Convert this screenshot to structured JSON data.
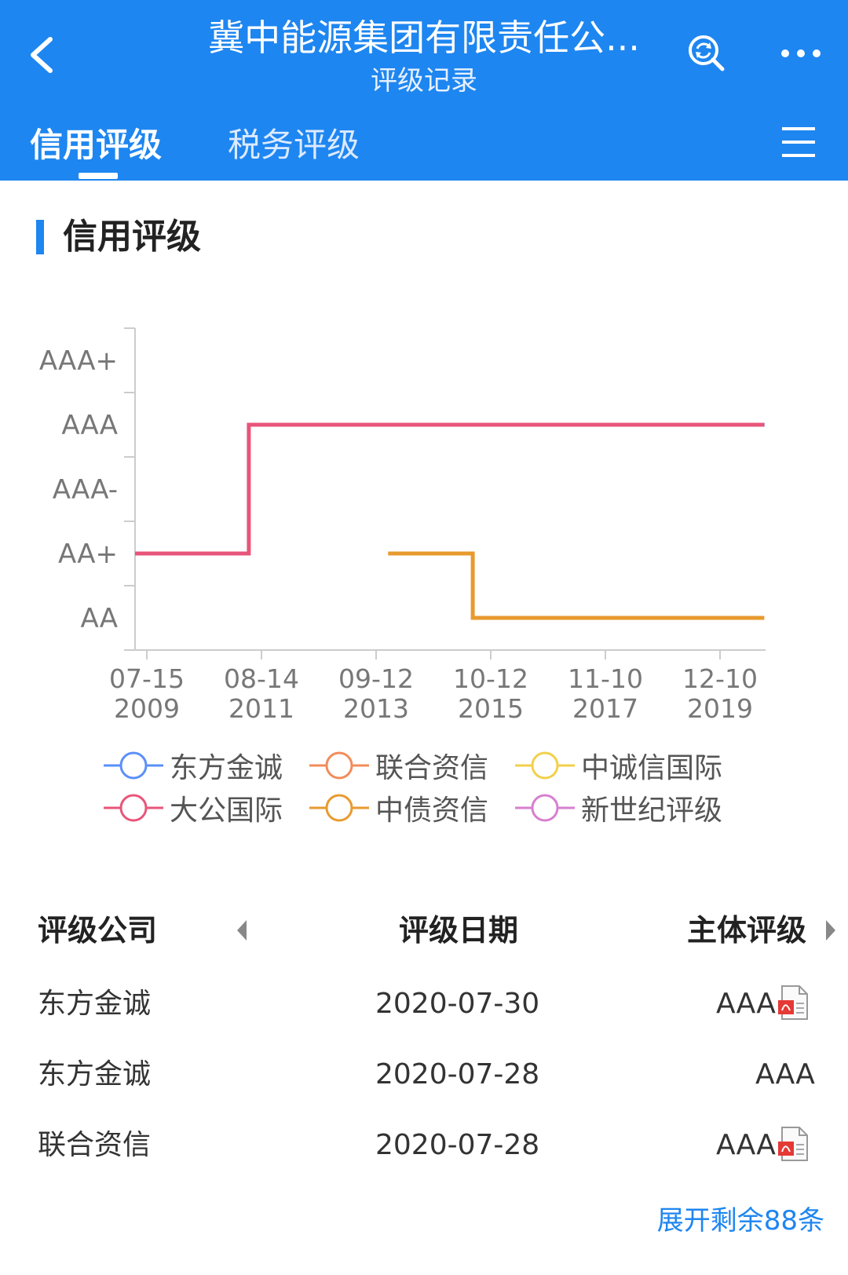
{
  "header": {
    "title": "冀中能源集团有限责任公...",
    "subtitle": "评级记录",
    "tabs": [
      {
        "label": "信用评级",
        "active": true
      },
      {
        "label": "税务评级",
        "active": false
      }
    ],
    "bg_color": "#1e86f0"
  },
  "section": {
    "title": "信用评级"
  },
  "chart_data": {
    "type": "line",
    "y_categories": [
      "AA",
      "AA+",
      "AAA-",
      "AAA",
      "AAA+"
    ],
    "x_tick_labels": [
      [
        "07-15",
        "2009"
      ],
      [
        "08-14",
        "2011"
      ],
      [
        "09-12",
        "2013"
      ],
      [
        "10-12",
        "2015"
      ],
      [
        "11-10",
        "2017"
      ],
      [
        "12-10",
        "2019"
      ]
    ],
    "xlim": [
      "2009-06-10",
      "2020-08-05"
    ],
    "series": [
      {
        "name": "东方金诚",
        "color": "#5b8ff9",
        "step": true,
        "points": [
          [
            "2019-09-01",
            "AAA"
          ],
          [
            "2020-07-30",
            "AAA"
          ]
        ]
      },
      {
        "name": "联合资信",
        "color": "#f28c5a",
        "step": true,
        "points": [
          [
            "2020-01-10",
            "AAA"
          ],
          [
            "2020-07-28",
            "AAA"
          ]
        ]
      },
      {
        "name": "中诚信国际",
        "color": "#f2d04a",
        "step": true,
        "points": [
          [
            "2020-05-15",
            "AAA"
          ],
          [
            "2020-07-28",
            "AAA"
          ]
        ]
      },
      {
        "name": "大公国际",
        "color": "#e8557a",
        "step": true,
        "points": [
          [
            "2009-06-10",
            "AA+"
          ],
          [
            "2011-06-15",
            "AA+"
          ],
          [
            "2011-06-15",
            "AAA"
          ],
          [
            "2020-07-28",
            "AAA"
          ]
        ]
      },
      {
        "name": "中债资信",
        "color": "#e89a2e",
        "step": true,
        "points": [
          [
            "2013-12-01",
            "AA+"
          ],
          [
            "2015-06-01",
            "AA+"
          ],
          [
            "2015-06-01",
            "AA"
          ],
          [
            "2020-07-28",
            "AA"
          ]
        ]
      },
      {
        "name": "新世纪评级",
        "color": "#d77fd0",
        "step": true,
        "points": [
          [
            "2012-07-01",
            "AAA"
          ],
          [
            "2020-07-28",
            "AAA"
          ]
        ]
      }
    ],
    "grid": false,
    "legend_position": "bottom"
  },
  "table": {
    "headers": [
      "评级公司",
      "评级日期",
      "主体评级"
    ],
    "rows": [
      {
        "company": "东方金诚",
        "date": "2020-07-30",
        "rating": "AAA",
        "pdf": true
      },
      {
        "company": "东方金诚",
        "date": "2020-07-28",
        "rating": "AAA",
        "pdf": false
      },
      {
        "company": "联合资信",
        "date": "2020-07-28",
        "rating": "AAA",
        "pdf": true
      }
    ],
    "expand_label": "展开剩余88条"
  },
  "icons": {
    "back": "chevron-left-icon",
    "search": "search-refresh-icon",
    "more": "more-dots-icon",
    "menu": "hamburger-menu-icon",
    "pdf": "pdf-file-icon"
  }
}
